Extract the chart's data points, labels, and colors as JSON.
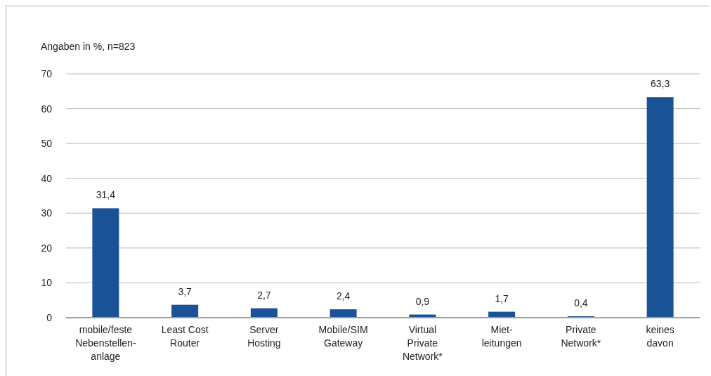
{
  "chart_data": {
    "type": "bar",
    "ylabel": "Angaben in %, n=823",
    "categories": [
      "mobile/feste\nNebenstellen-\nanlage",
      "Least Cost\nRouter",
      "Server\nHosting",
      "Mobile/SIM\nGateway",
      "Virtual\nPrivate\nNetwork*",
      "Miet-\nleitungen",
      "Private\nNetwork*",
      "keines\ndavon"
    ],
    "values": [
      31.4,
      3.7,
      2.7,
      2.4,
      0.9,
      1.7,
      0.4,
      63.3
    ],
    "value_labels": [
      "31,4",
      "3,7",
      "2,7",
      "2,4",
      "0,9",
      "1,7",
      "0,4",
      "63,3"
    ],
    "color": "#1a5296",
    "ylim": [
      0,
      70
    ],
    "yticks": [
      0,
      10,
      20,
      30,
      40,
      50,
      60,
      70
    ],
    "grid": "y"
  }
}
